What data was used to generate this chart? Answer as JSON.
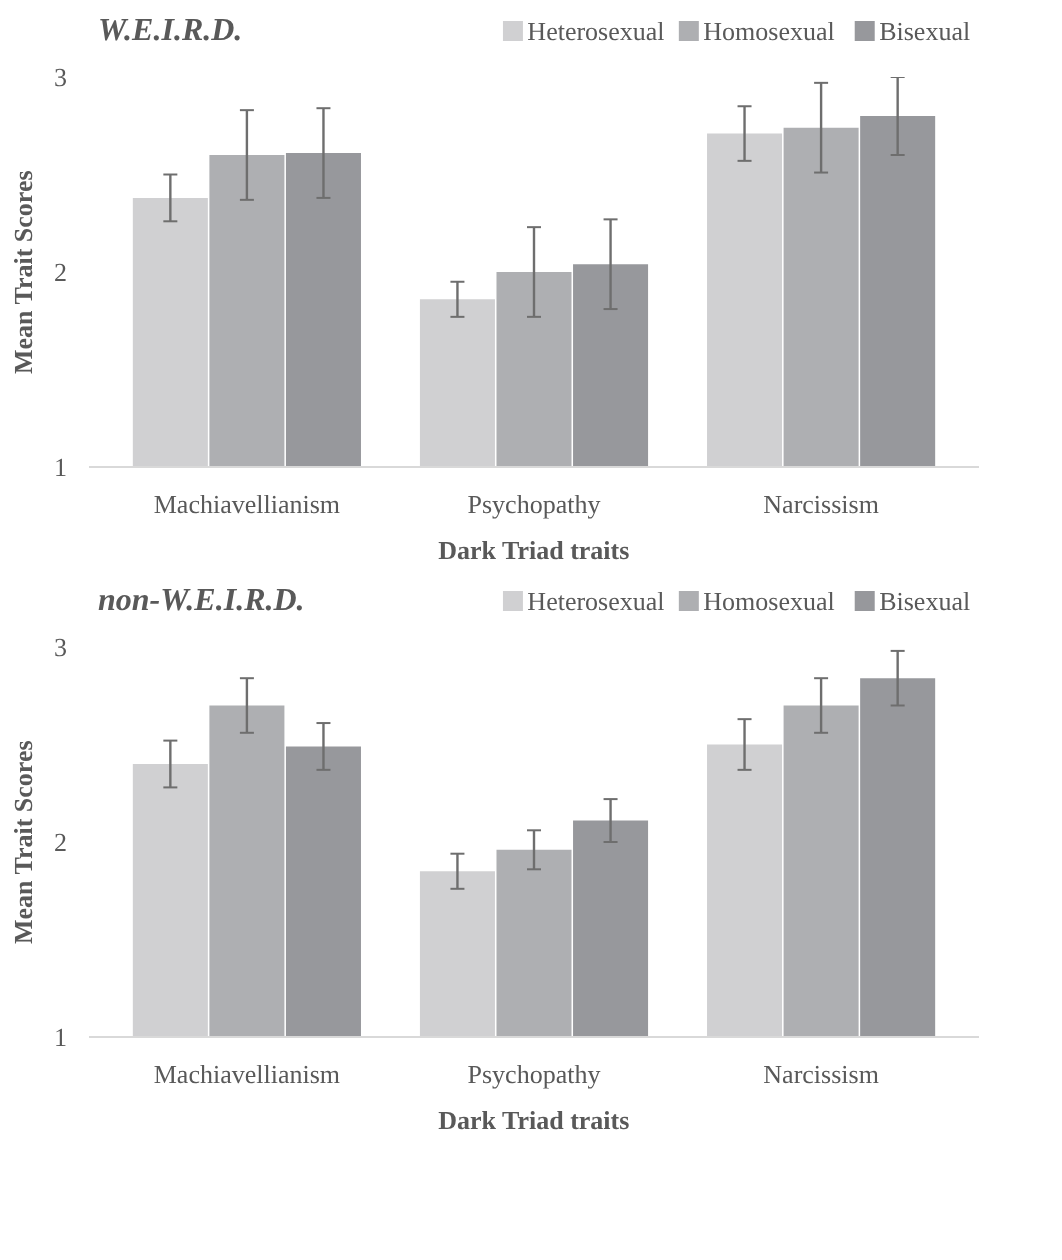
{
  "chart_data": [
    {
      "type": "bar",
      "title": "W.E.I.R.D.",
      "xlabel": "Dark Triad traits",
      "ylabel": "Mean Trait Scores",
      "categories": [
        "Machiavellianism",
        "Psychopathy",
        "Narcissism"
      ],
      "ylim": [
        1,
        3
      ],
      "yticks": [
        1,
        2,
        3
      ],
      "grid": false,
      "legend": "top right",
      "series": [
        {
          "name": "Heterosexual",
          "color": "#d0d0d2",
          "values": [
            2.38,
            1.86,
            2.71
          ],
          "errors": [
            0.12,
            0.09,
            0.14
          ]
        },
        {
          "name": "Homosexual",
          "color": "#aeafb2",
          "values": [
            2.6,
            2.0,
            2.74
          ],
          "errors": [
            0.23,
            0.23,
            0.23
          ]
        },
        {
          "name": "Bisexual",
          "color": "#97989c",
          "values": [
            2.61,
            2.04,
            2.8
          ],
          "errors": [
            0.23,
            0.23,
            0.2
          ]
        }
      ]
    },
    {
      "type": "bar",
      "title": "non-W.E.I.R.D.",
      "xlabel": "Dark Triad traits",
      "ylabel": "Mean Trait Scores",
      "categories": [
        "Machiavellianism",
        "Psychopathy",
        "Narcissism"
      ],
      "ylim": [
        1,
        3
      ],
      "yticks": [
        1,
        2,
        3
      ],
      "grid": false,
      "legend": "top right",
      "series": [
        {
          "name": "Heterosexual",
          "color": "#d0d0d2",
          "values": [
            2.4,
            1.85,
            2.5
          ],
          "errors": [
            0.12,
            0.09,
            0.13
          ]
        },
        {
          "name": "Homosexual",
          "color": "#aeafb2",
          "values": [
            2.7,
            1.96,
            2.7
          ],
          "errors": [
            0.14,
            0.1,
            0.14
          ]
        },
        {
          "name": "Bisexual",
          "color": "#97989c",
          "values": [
            2.49,
            2.11,
            2.84
          ],
          "errors": [
            0.12,
            0.11,
            0.14
          ]
        }
      ]
    }
  ]
}
